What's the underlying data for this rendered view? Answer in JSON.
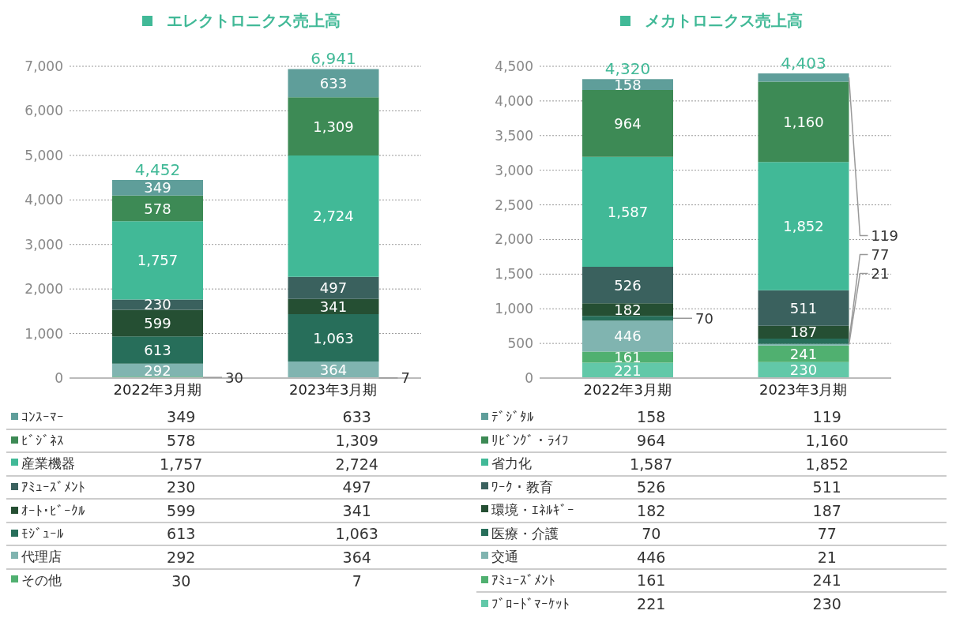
{
  "chart_data": [
    {
      "type": "bar",
      "title": "エレクトロニクス売上高",
      "categories": [
        "2022年3月期",
        "2023年3月期"
      ],
      "stacked": true,
      "totals": [
        "4,452",
        "6,941"
      ],
      "ylim": [
        0,
        7000
      ],
      "yticks": [
        {
          "value": 0,
          "label": "0"
        },
        {
          "value": 1000,
          "label": "1,000"
        },
        {
          "value": 2000,
          "label": "2,000"
        },
        {
          "value": 3000,
          "label": "3,000"
        },
        {
          "value": 4000,
          "label": "4,000"
        },
        {
          "value": 5000,
          "label": "5,000"
        },
        {
          "value": 6000,
          "label": "6,000"
        },
        {
          "value": 7000,
          "label": "7,000"
        }
      ],
      "grid": "y",
      "legend": "bottom",
      "series": [
        {
          "name": "その他",
          "color": "#50b070",
          "values": [
            30,
            7
          ],
          "value_labels": [
            "30",
            "7"
          ]
        },
        {
          "name": "代理店",
          "color": "#80b4b0",
          "values": [
            292,
            364
          ],
          "value_labels": [
            "292",
            "364"
          ]
        },
        {
          "name": "ﾓｼﾞｭｰﾙ",
          "color": "#276e5a",
          "values": [
            613,
            1063
          ],
          "value_labels": [
            "613",
            "1,063"
          ]
        },
        {
          "name": "ｵｰﾄ･ﾋﾞｰｸﾙ",
          "color": "#254f33",
          "values": [
            599,
            341
          ],
          "value_labels": [
            "599",
            "341"
          ]
        },
        {
          "name": "ｱﾐｭｰｽﾞﾒﾝﾄ",
          "color": "#3a615e",
          "values": [
            230,
            497
          ],
          "value_labels": [
            "230",
            "497"
          ]
        },
        {
          "name": "産業機器",
          "color": "#41b997",
          "values": [
            1757,
            2724
          ],
          "value_labels": [
            "1,757",
            "2,724"
          ]
        },
        {
          "name": "ﾋﾞｼﾞﾈｽ",
          "color": "#3d8a55",
          "values": [
            578,
            1309
          ],
          "value_labels": [
            "578",
            "1,309"
          ]
        },
        {
          "name": "ｺﾝｽｰﾏｰ",
          "color": "#5f9e9a",
          "values": [
            349,
            633
          ],
          "value_labels": [
            "349",
            "633"
          ]
        }
      ]
    },
    {
      "type": "bar",
      "title": "メカトロニクス売上高",
      "categories": [
        "2022年3月期",
        "2023年3月期"
      ],
      "stacked": true,
      "totals": [
        "4,320",
        "4,403"
      ],
      "ylim": [
        0,
        4500
      ],
      "yticks": [
        {
          "value": 0,
          "label": "0"
        },
        {
          "value": 500,
          "label": "500"
        },
        {
          "value": 1000,
          "label": "1,000"
        },
        {
          "value": 1500,
          "label": "1,500"
        },
        {
          "value": 2000,
          "label": "2,000"
        },
        {
          "value": 2500,
          "label": "2,500"
        },
        {
          "value": 3000,
          "label": "3,000"
        },
        {
          "value": 3500,
          "label": "3,500"
        },
        {
          "value": 4000,
          "label": "4,000"
        },
        {
          "value": 4500,
          "label": "4,500"
        }
      ],
      "grid": "y",
      "legend": "bottom",
      "series": [
        {
          "name": "ﾌﾞﾛｰﾄﾞﾏｰｹｯﾄ",
          "color": "#62c8a8",
          "values": [
            221,
            230
          ],
          "value_labels": [
            "221",
            "230"
          ]
        },
        {
          "name": "ｱﾐｭｰｽﾞﾒﾝﾄ",
          "color": "#50b070",
          "values": [
            161,
            241
          ],
          "value_labels": [
            "161",
            "241"
          ]
        },
        {
          "name": "交通",
          "color": "#80b4b0",
          "values": [
            446,
            21
          ],
          "value_labels": [
            "446",
            "21"
          ]
        },
        {
          "name": "医療・介護",
          "color": "#276e5a",
          "values": [
            70,
            77
          ],
          "value_labels": [
            "70",
            "77"
          ]
        },
        {
          "name": "環境・ｴﾈﾙｷﾞｰ",
          "color": "#254f33",
          "values": [
            182,
            187
          ],
          "value_labels": [
            "182",
            "187"
          ]
        },
        {
          "name": "ﾜｰｸ・教育",
          "color": "#3a615e",
          "values": [
            526,
            511
          ],
          "value_labels": [
            "526",
            "511"
          ]
        },
        {
          "name": "省力化",
          "color": "#41b997",
          "values": [
            1587,
            1852
          ],
          "value_labels": [
            "1,587",
            "1,852"
          ]
        },
        {
          "name": "ﾘﾋﾞﾝｸﾞ・ﾗｲﾌ",
          "color": "#3d8a55",
          "values": [
            964,
            1160
          ],
          "value_labels": [
            "964",
            "1,160"
          ]
        },
        {
          "name": "ﾃﾞｼﾞﾀﾙ",
          "color": "#5f9e9a",
          "values": [
            158,
            119
          ],
          "value_labels": [
            "158",
            "119"
          ]
        }
      ]
    }
  ]
}
